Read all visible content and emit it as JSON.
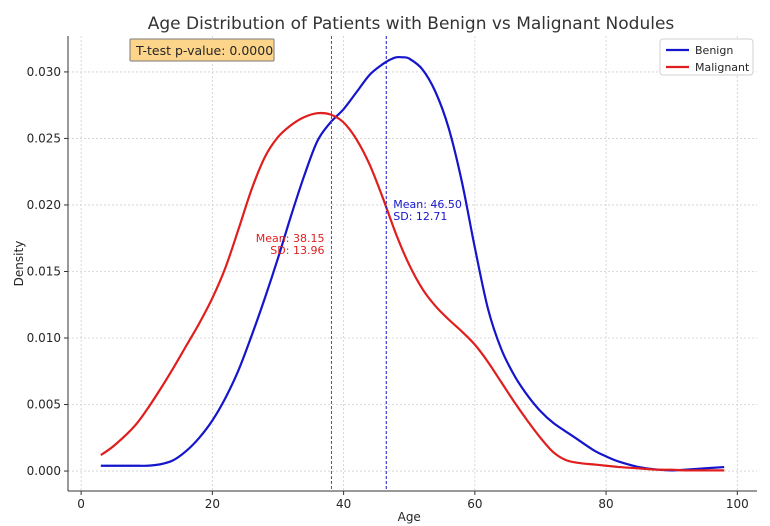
{
  "chart_data": {
    "type": "line",
    "title": "Age Distribution of Patients with Benign vs Malignant Nodules",
    "xlabel": "Age",
    "ylabel": "Density",
    "xlim": [
      -2,
      103
    ],
    "ylim": [
      -0.0015,
      0.0327
    ],
    "xticks": [
      0,
      20,
      40,
      60,
      80,
      100
    ],
    "yticks": [
      0.0,
      0.005,
      0.01,
      0.015,
      0.02,
      0.025,
      0.03
    ],
    "ytick_labels": [
      "0.000",
      "0.005",
      "0.010",
      "0.015",
      "0.020",
      "0.025",
      "0.030"
    ],
    "grid": true,
    "legend_position": "top-right",
    "series": [
      {
        "name": "Benign",
        "color": "#1515cc",
        "x": [
          3,
          5,
          8,
          10,
          12,
          14,
          16,
          18,
          20,
          22,
          24,
          26,
          28,
          30,
          32,
          34,
          36,
          38,
          40,
          42,
          44,
          46,
          47,
          48,
          49,
          50,
          52,
          54,
          56,
          58,
          60,
          62,
          64,
          66,
          68,
          70,
          72,
          75,
          78,
          80,
          82,
          85,
          88,
          90,
          92,
          95,
          98
        ],
        "y": [
          0.0004,
          0.0004,
          0.0004,
          0.0004,
          0.0005,
          0.0008,
          0.0015,
          0.0025,
          0.0038,
          0.0055,
          0.0076,
          0.0102,
          0.013,
          0.016,
          0.0192,
          0.0222,
          0.0248,
          0.0262,
          0.0272,
          0.0285,
          0.0298,
          0.0306,
          0.0309,
          0.0311,
          0.0311,
          0.031,
          0.0302,
          0.0285,
          0.0258,
          0.0218,
          0.0168,
          0.0122,
          0.0092,
          0.0072,
          0.0057,
          0.0045,
          0.0036,
          0.0026,
          0.0016,
          0.0011,
          0.0007,
          0.0003,
          0.0001,
          5e-05,
          0.0001,
          0.0002,
          0.0003
        ]
      },
      {
        "name": "Malignant",
        "color": "#e01e1e",
        "x": [
          3,
          5,
          8,
          10,
          12,
          14,
          16,
          18,
          20,
          22,
          24,
          26,
          28,
          30,
          32,
          34,
          36,
          38,
          40,
          42,
          44,
          46,
          48,
          50,
          52,
          54,
          56,
          58,
          60,
          62,
          64,
          66,
          68,
          70,
          72,
          74,
          76,
          78,
          80,
          82,
          85,
          88,
          90,
          92,
          95,
          98
        ],
        "y": [
          0.0012,
          0.0019,
          0.0033,
          0.0046,
          0.0061,
          0.0077,
          0.0094,
          0.0111,
          0.013,
          0.0153,
          0.0182,
          0.0212,
          0.0236,
          0.0251,
          0.026,
          0.0266,
          0.0269,
          0.0268,
          0.0262,
          0.0249,
          0.023,
          0.0205,
          0.0178,
          0.0155,
          0.0137,
          0.0124,
          0.0114,
          0.0105,
          0.0095,
          0.0082,
          0.0067,
          0.0052,
          0.0038,
          0.0025,
          0.0014,
          0.0008,
          0.0006,
          0.0005,
          0.0004,
          0.0003,
          0.0002,
          0.0001,
          0.0001,
          5e-05,
          5e-05,
          5e-05
        ]
      }
    ],
    "mean_lines": [
      {
        "series": "Benign",
        "x": 46.5,
        "color": "#1515cc",
        "label_mean": "Mean: 46.50",
        "label_sd": "SD: 12.71",
        "anchor": "start"
      },
      {
        "series": "Malignant",
        "x": 38.15,
        "color": "#e01e1e",
        "label_mean": "Mean: 38.15",
        "label_sd": "SD: 13.96",
        "anchor": "end"
      }
    ],
    "annotation_box": {
      "text": "T-test p-value: 0.0000",
      "fill": "#fdd58a",
      "border": "#7a7a7a"
    }
  }
}
